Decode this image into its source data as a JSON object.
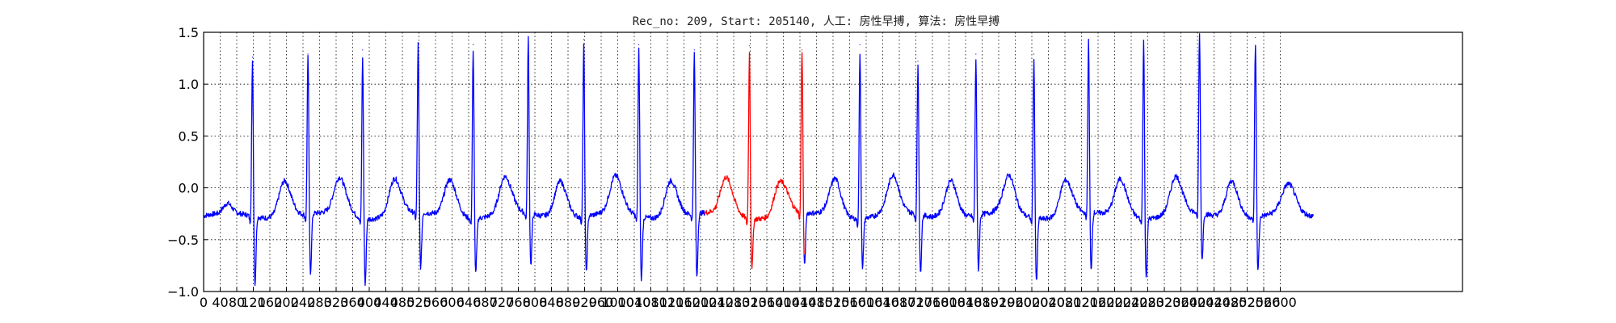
{
  "chart_data": {
    "type": "line",
    "title": "Rec_no: 209, Start: 205140, 人工: 房性早搏, 算法: 房性早搏",
    "xlabel": "",
    "ylabel": "",
    "xlim": [
      0,
      3040
    ],
    "ylim": [
      -1.0,
      1.5
    ],
    "yticks": [
      -1.0,
      -0.5,
      0.0,
      0.5,
      1.0,
      1.5
    ],
    "ytick_labels": [
      "−1.0",
      "−0.5",
      "0.0",
      "0.5",
      "1.0",
      "1.5"
    ],
    "xticks": [
      0,
      40,
      80,
      120,
      160,
      200,
      240,
      280,
      320,
      360,
      400,
      440,
      480,
      520,
      560,
      600,
      640,
      680,
      720,
      760,
      800,
      840,
      880,
      920,
      960,
      1000,
      1040,
      1080,
      1120,
      1160,
      1200,
      1240,
      1280,
      1320,
      1360,
      1400,
      1440,
      1480,
      1520,
      1560,
      1600,
      1640,
      1680,
      1720,
      1760,
      1800,
      1840,
      1880,
      1920,
      1960,
      2000,
      2040,
      2080,
      2120,
      2160,
      2200,
      2240,
      2280,
      2320,
      2360,
      2400,
      2440,
      2480,
      2520,
      2560,
      2600
    ],
    "grid": true,
    "baseline": -0.27,
    "signal_end": 2680,
    "highlight_range": [
      1210,
      1450
    ],
    "colors": {
      "normal": "#0000ff",
      "highlight": "#ff0000"
    },
    "beats": [
      {
        "x": 118,
        "r": 1.26,
        "s": -0.93
      },
      {
        "x": 252,
        "r": 1.29,
        "s": -0.85
      },
      {
        "x": 384,
        "r": 1.33,
        "s": -0.93
      },
      {
        "x": 518,
        "r": 1.4,
        "s": -0.81
      },
      {
        "x": 651,
        "r": 1.38,
        "s": -0.82
      },
      {
        "x": 784,
        "r": 1.46,
        "s": -0.78
      },
      {
        "x": 918,
        "r": 1.43,
        "s": -0.83
      },
      {
        "x": 1051,
        "r": 1.38,
        "s": -0.89
      },
      {
        "x": 1185,
        "r": 1.33,
        "s": -0.9
      },
      {
        "x": 1318,
        "r": 1.37,
        "s": -0.75
      },
      {
        "x": 1445,
        "r": 1.33,
        "s": -0.8
      },
      {
        "x": 1585,
        "r": 1.38,
        "s": -0.78
      },
      {
        "x": 1725,
        "r": 1.22,
        "s": -0.84
      },
      {
        "x": 1865,
        "r": 1.29,
        "s": -0.81
      },
      {
        "x": 2005,
        "r": 1.29,
        "s": -0.9
      },
      {
        "x": 2137,
        "r": 1.43,
        "s": -0.84
      },
      {
        "x": 2270,
        "r": 1.5,
        "s": -0.85
      },
      {
        "x": 2405,
        "r": 1.5,
        "s": -0.73
      },
      {
        "x": 2540,
        "r": 1.45,
        "s": -0.81
      }
    ]
  }
}
